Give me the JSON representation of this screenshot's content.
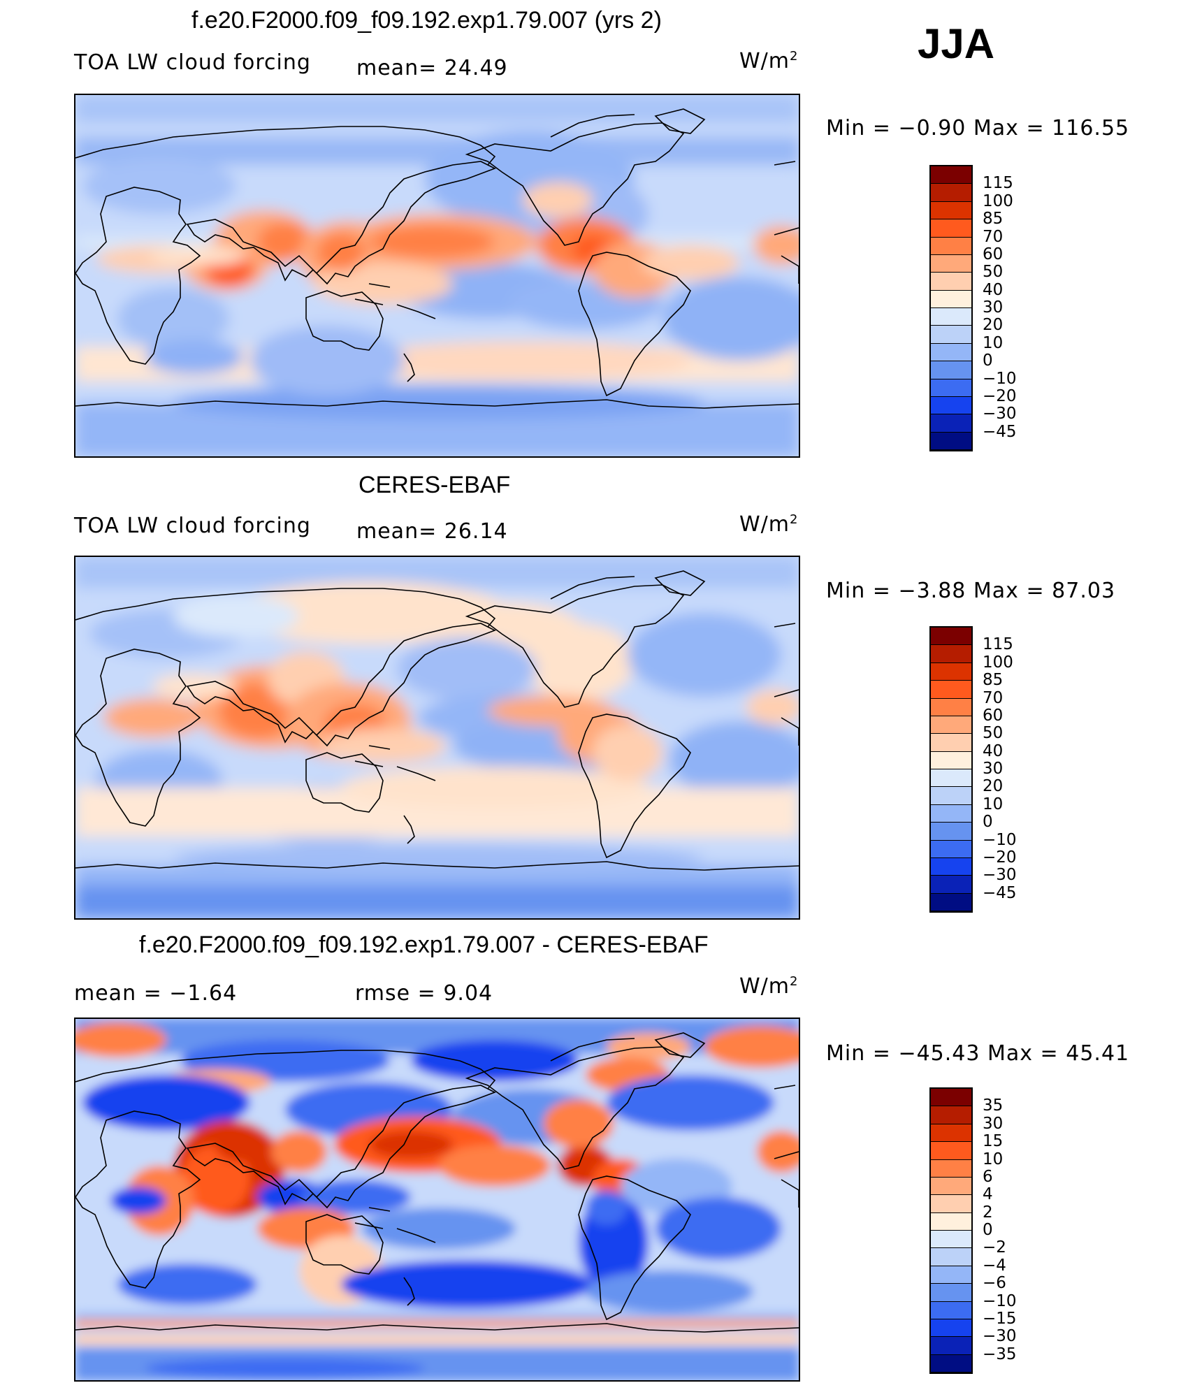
{
  "season": "JJA",
  "units_label": "W/m",
  "units_exp": "2",
  "panels": [
    {
      "title": "f.e20.F2000.f09_f09.192.exp1.79.007 (yrs 2)",
      "left_label": "TOA LW cloud forcing",
      "stat_text": "mean=   24.49",
      "minmax": "Min  =   −0.90  Max  =  116.55"
    },
    {
      "title": "CERES-EBAF",
      "left_label": "TOA LW cloud forcing",
      "stat_text": "mean=   26.14",
      "minmax": "Min  =   −3.88  Max  =   87.03"
    },
    {
      "title": "f.e20.F2000.f09_f09.192.exp1.79.007 - CERES-EBAF",
      "left_label": "mean  =   −1.64",
      "stat_text": "rmse  =    9.04",
      "minmax": "Min  = −45.43  Max  =   45.41"
    }
  ],
  "chart_data": [
    {
      "type": "heatmap",
      "title": "f.e20.F2000.f09_f09.192.exp1.79.007 (yrs 2)",
      "variable": "TOA LW cloud forcing",
      "units": "W/m2",
      "mean": 24.49,
      "min": -0.9,
      "max": 116.55,
      "colorbar_levels": [
        "115",
        "100",
        "85",
        "70",
        "60",
        "50",
        "40",
        "30",
        "20",
        "10",
        "0",
        "−10",
        "−20",
        "−30",
        "−45"
      ],
      "colors": [
        "#7b0000",
        "#b51d00",
        "#dc3300",
        "#ff5a1e",
        "#ff8045",
        "#ffa97a",
        "#ffcfb0",
        "#fff0dd",
        "#dbe9fb",
        "#bcd2f8",
        "#94b6f7",
        "#6693f0",
        "#3c6cf2",
        "#1643ef",
        "#0a22b7",
        "#000d83"
      ]
    },
    {
      "type": "heatmap",
      "title": "CERES-EBAF",
      "variable": "TOA LW cloud forcing",
      "units": "W/m2",
      "mean": 26.14,
      "min": -3.88,
      "max": 87.03,
      "colorbar_levels": [
        "115",
        "100",
        "85",
        "70",
        "60",
        "50",
        "40",
        "30",
        "20",
        "10",
        "0",
        "−10",
        "−20",
        "−30",
        "−45"
      ],
      "colors": [
        "#7b0000",
        "#b51d00",
        "#dc3300",
        "#ff5a1e",
        "#ff8045",
        "#ffa97a",
        "#ffcfb0",
        "#fff0dd",
        "#dbe9fb",
        "#bcd2f8",
        "#94b6f7",
        "#6693f0",
        "#3c6cf2",
        "#1643ef",
        "#0a22b7",
        "#000d83"
      ]
    },
    {
      "type": "heatmap",
      "title": "f.e20.F2000.f09_f09.192.exp1.79.007 - CERES-EBAF",
      "units": "W/m2",
      "mean": -1.64,
      "rmse": 9.04,
      "min": -45.43,
      "max": 45.41,
      "colorbar_levels": [
        "35",
        "30",
        "15",
        "10",
        "6",
        "4",
        "2",
        "0",
        "−2",
        "−4",
        "−6",
        "−10",
        "−15",
        "−30",
        "−35"
      ],
      "colors": [
        "#7b0000",
        "#b51d00",
        "#dc3300",
        "#ff5a1e",
        "#ff8045",
        "#ffa97a",
        "#ffcfb0",
        "#fff0dd",
        "#dbe9fb",
        "#bcd2f8",
        "#94b6f7",
        "#6693f0",
        "#3c6cf2",
        "#1643ef",
        "#0a22b7",
        "#000d83"
      ]
    }
  ]
}
